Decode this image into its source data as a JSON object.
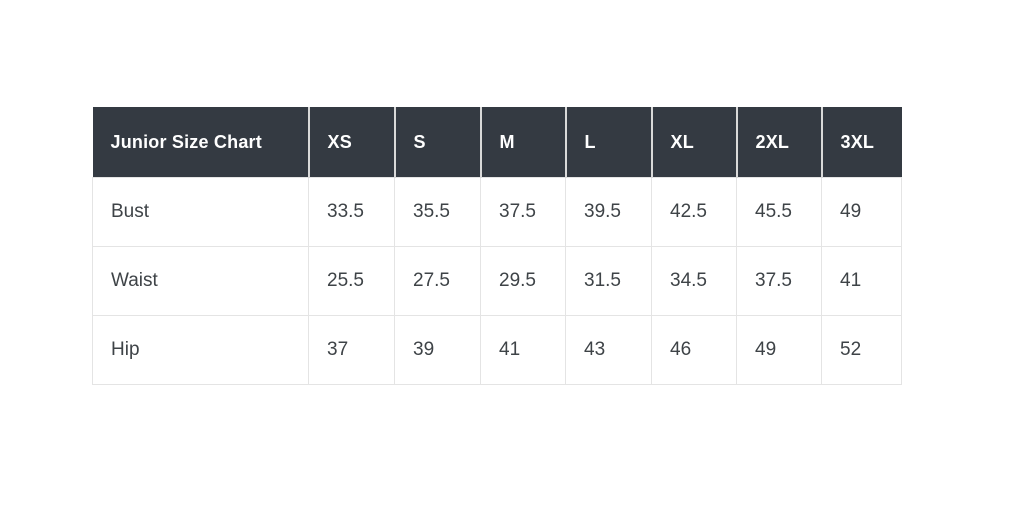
{
  "colors": {
    "page_bg": "#ffffff",
    "header_bg": "#343a42",
    "header_text": "#ffffff",
    "header_divider": "#d9d9d9",
    "body_text": "#3e4347",
    "border": "#e4e4e4"
  },
  "table": {
    "title": "Junior Size Chart",
    "columns": [
      "XS",
      "S",
      "M",
      "L",
      "XL",
      "2XL",
      "3XL"
    ],
    "rows": [
      {
        "label": "Bust",
        "values": [
          "33.5",
          "35.5",
          "37.5",
          "39.5",
          "42.5",
          "45.5",
          "49"
        ]
      },
      {
        "label": "Waist",
        "values": [
          "25.5",
          "27.5",
          "29.5",
          "31.5",
          "34.5",
          "37.5",
          "41"
        ]
      },
      {
        "label": "Hip",
        "values": [
          "37",
          "39",
          "41",
          "43",
          "46",
          "49",
          "52"
        ]
      }
    ]
  },
  "chart_data": {
    "type": "table",
    "title": "Junior Size Chart",
    "columns": [
      "XS",
      "S",
      "M",
      "L",
      "XL",
      "2XL",
      "3XL"
    ],
    "rows": [
      {
        "label": "Bust",
        "values": [
          33.5,
          35.5,
          37.5,
          39.5,
          42.5,
          45.5,
          49
        ]
      },
      {
        "label": "Waist",
        "values": [
          25.5,
          27.5,
          29.5,
          31.5,
          34.5,
          37.5,
          41
        ]
      },
      {
        "label": "Hip",
        "values": [
          37,
          39,
          41,
          43,
          46,
          49,
          52
        ]
      }
    ]
  }
}
